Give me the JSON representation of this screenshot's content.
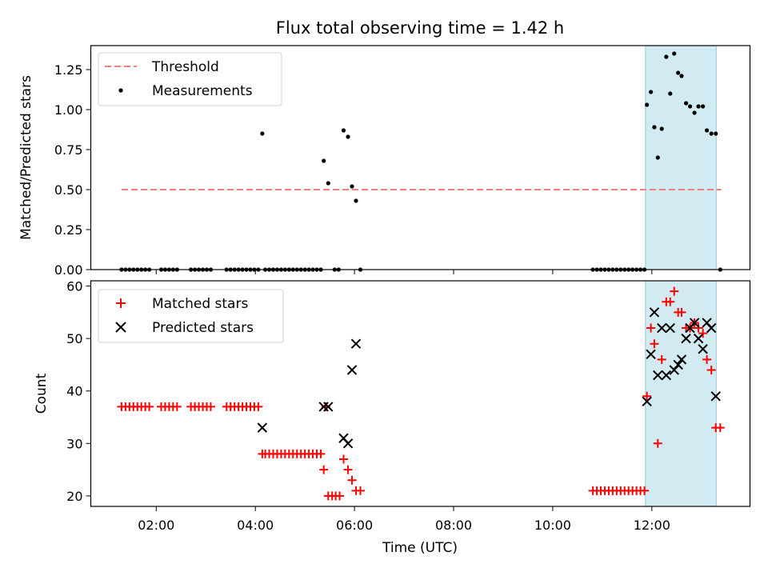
{
  "chart_data": [
    {
      "type": "scatter",
      "title": "Flux total observing time = 1.42 h",
      "xlabel": "",
      "ylabel": "Matched/Predicted stars",
      "xlim": [
        0.68,
        13.98
      ],
      "ylim": [
        0,
        1.4
      ],
      "yticks": [
        "0.00",
        "0.25",
        "0.50",
        "0.75",
        "1.00",
        "1.25"
      ],
      "xticks": [
        "02:00",
        "04:00",
        "06:00",
        "08:00",
        "10:00",
        "12:00"
      ],
      "shaded_span": [
        11.87,
        13.3
      ],
      "shade_color": "#add8e6",
      "legend": {
        "position": "top-left",
        "entries": [
          "Threshold",
          "Measurements"
        ]
      },
      "series": [
        {
          "name": "Threshold",
          "kind": "dashed-line",
          "color": "#f08080",
          "x": [
            1.3,
            13.4
          ],
          "y": [
            0.5,
            0.5
          ]
        },
        {
          "name": "Measurements",
          "kind": "dot",
          "color": "#000000",
          "points": [
            [
              1.3,
              0
            ],
            [
              1.38,
              0
            ],
            [
              1.46,
              0
            ],
            [
              1.54,
              0
            ],
            [
              1.62,
              0
            ],
            [
              1.7,
              0
            ],
            [
              1.78,
              0
            ],
            [
              1.86,
              0
            ],
            [
              2.1,
              0
            ],
            [
              2.18,
              0
            ],
            [
              2.26,
              0
            ],
            [
              2.34,
              0
            ],
            [
              2.42,
              0
            ],
            [
              2.7,
              0
            ],
            [
              2.78,
              0
            ],
            [
              2.86,
              0
            ],
            [
              2.94,
              0
            ],
            [
              3.02,
              0
            ],
            [
              3.1,
              0
            ],
            [
              3.42,
              0
            ],
            [
              3.5,
              0
            ],
            [
              3.58,
              0
            ],
            [
              3.66,
              0
            ],
            [
              3.74,
              0
            ],
            [
              3.82,
              0
            ],
            [
              3.9,
              0
            ],
            [
              3.98,
              0
            ],
            [
              4.06,
              0
            ],
            [
              4.14,
              0.85
            ],
            [
              4.2,
              0
            ],
            [
              4.28,
              0
            ],
            [
              4.36,
              0
            ],
            [
              4.44,
              0
            ],
            [
              4.52,
              0
            ],
            [
              4.6,
              0
            ],
            [
              4.68,
              0
            ],
            [
              4.76,
              0
            ],
            [
              4.84,
              0
            ],
            [
              4.92,
              0
            ],
            [
              5.0,
              0
            ],
            [
              5.08,
              0
            ],
            [
              5.16,
              0
            ],
            [
              5.24,
              0
            ],
            [
              5.32,
              0
            ],
            [
              5.38,
              0.68
            ],
            [
              5.47,
              0.54
            ],
            [
              5.6,
              0
            ],
            [
              5.68,
              0
            ],
            [
              5.78,
              0.87
            ],
            [
              5.87,
              0.83
            ],
            [
              5.95,
              0.52
            ],
            [
              6.03,
              0.43
            ],
            [
              6.12,
              0
            ],
            [
              10.81,
              0
            ],
            [
              10.89,
              0
            ],
            [
              10.97,
              0
            ],
            [
              11.05,
              0
            ],
            [
              11.13,
              0
            ],
            [
              11.21,
              0
            ],
            [
              11.29,
              0
            ],
            [
              11.37,
              0
            ],
            [
              11.45,
              0
            ],
            [
              11.53,
              0
            ],
            [
              11.61,
              0
            ],
            [
              11.69,
              0
            ],
            [
              11.77,
              0
            ],
            [
              11.85,
              0
            ],
            [
              11.9,
              1.03
            ],
            [
              11.98,
              1.11
            ],
            [
              12.05,
              0.89
            ],
            [
              12.12,
              0.7
            ],
            [
              12.2,
              0.88
            ],
            [
              12.29,
              1.33
            ],
            [
              12.37,
              1.1
            ],
            [
              12.45,
              1.35
            ],
            [
              12.53,
              1.23
            ],
            [
              12.6,
              1.21
            ],
            [
              12.69,
              1.04
            ],
            [
              12.77,
              1.02
            ],
            [
              12.86,
              0.98
            ],
            [
              12.94,
              1.02
            ],
            [
              13.03,
              1.02
            ],
            [
              13.11,
              0.87
            ],
            [
              13.2,
              0.85
            ],
            [
              13.29,
              0.85
            ],
            [
              13.38,
              0
            ]
          ]
        }
      ]
    },
    {
      "type": "scatter",
      "title": "",
      "xlabel": "Time (UTC)",
      "ylabel": "Count",
      "xlim": [
        0.68,
        13.98
      ],
      "ylim": [
        18,
        61
      ],
      "yticks": [
        "20",
        "30",
        "40",
        "50",
        "60"
      ],
      "xticks": [
        "02:00",
        "04:00",
        "06:00",
        "08:00",
        "10:00",
        "12:00"
      ],
      "shaded_span": [
        11.87,
        13.3
      ],
      "shade_color": "#add8e6",
      "legend": {
        "position": "top-left",
        "entries": [
          "Matched stars",
          "Predicted stars"
        ]
      },
      "series": [
        {
          "name": "Matched stars",
          "kind": "plus",
          "color": "#ff0000",
          "points": [
            [
              1.3,
              37
            ],
            [
              1.38,
              37
            ],
            [
              1.46,
              37
            ],
            [
              1.54,
              37
            ],
            [
              1.62,
              37
            ],
            [
              1.7,
              37
            ],
            [
              1.78,
              37
            ],
            [
              1.86,
              37
            ],
            [
              2.1,
              37
            ],
            [
              2.18,
              37
            ],
            [
              2.26,
              37
            ],
            [
              2.34,
              37
            ],
            [
              2.42,
              37
            ],
            [
              2.7,
              37
            ],
            [
              2.78,
              37
            ],
            [
              2.86,
              37
            ],
            [
              2.94,
              37
            ],
            [
              3.02,
              37
            ],
            [
              3.1,
              37
            ],
            [
              3.42,
              37
            ],
            [
              3.5,
              37
            ],
            [
              3.58,
              37
            ],
            [
              3.66,
              37
            ],
            [
              3.74,
              37
            ],
            [
              3.82,
              37
            ],
            [
              3.9,
              37
            ],
            [
              3.98,
              37
            ],
            [
              4.06,
              37
            ],
            [
              4.14,
              28
            ],
            [
              4.2,
              28
            ],
            [
              4.28,
              28
            ],
            [
              4.36,
              28
            ],
            [
              4.44,
              28
            ],
            [
              4.52,
              28
            ],
            [
              4.6,
              28
            ],
            [
              4.68,
              28
            ],
            [
              4.76,
              28
            ],
            [
              4.84,
              28
            ],
            [
              4.92,
              28
            ],
            [
              5.0,
              28
            ],
            [
              5.08,
              28
            ],
            [
              5.16,
              28
            ],
            [
              5.24,
              28
            ],
            [
              5.32,
              28
            ],
            [
              5.38,
              25
            ],
            [
              5.42,
              37
            ],
            [
              5.47,
              20
            ],
            [
              5.55,
              20
            ],
            [
              5.62,
              20
            ],
            [
              5.7,
              20
            ],
            [
              5.78,
              27
            ],
            [
              5.87,
              25
            ],
            [
              5.95,
              23
            ],
            [
              6.03,
              21
            ],
            [
              6.12,
              21
            ],
            [
              10.81,
              21
            ],
            [
              10.89,
              21
            ],
            [
              10.97,
              21
            ],
            [
              11.05,
              21
            ],
            [
              11.13,
              21
            ],
            [
              11.21,
              21
            ],
            [
              11.29,
              21
            ],
            [
              11.37,
              21
            ],
            [
              11.45,
              21
            ],
            [
              11.53,
              21
            ],
            [
              11.61,
              21
            ],
            [
              11.69,
              21
            ],
            [
              11.77,
              21
            ],
            [
              11.85,
              21
            ],
            [
              11.9,
              39
            ],
            [
              11.98,
              52
            ],
            [
              12.05,
              49
            ],
            [
              12.12,
              30
            ],
            [
              12.2,
              46
            ],
            [
              12.29,
              57
            ],
            [
              12.37,
              57
            ],
            [
              12.45,
              59
            ],
            [
              12.53,
              55
            ],
            [
              12.6,
              55
            ],
            [
              12.69,
              52
            ],
            [
              12.77,
              52
            ],
            [
              12.86,
              53
            ],
            [
              12.94,
              52
            ],
            [
              13.03,
              51
            ],
            [
              13.11,
              46
            ],
            [
              13.2,
              44
            ],
            [
              13.29,
              33
            ],
            [
              13.38,
              33
            ]
          ]
        },
        {
          "name": "Predicted stars",
          "kind": "x",
          "color": "#000000",
          "points": [
            [
              4.14,
              33
            ],
            [
              5.38,
              37
            ],
            [
              5.47,
              37
            ],
            [
              5.78,
              31
            ],
            [
              5.87,
              30
            ],
            [
              5.95,
              44
            ],
            [
              6.03,
              49
            ],
            [
              11.9,
              38
            ],
            [
              11.98,
              47
            ],
            [
              12.05,
              55
            ],
            [
              12.12,
              43
            ],
            [
              12.2,
              52
            ],
            [
              12.29,
              43
            ],
            [
              12.37,
              52
            ],
            [
              12.45,
              44
            ],
            [
              12.53,
              45
            ],
            [
              12.6,
              46
            ],
            [
              12.69,
              50
            ],
            [
              12.77,
              52
            ],
            [
              12.86,
              53
            ],
            [
              12.94,
              50
            ],
            [
              13.03,
              48
            ],
            [
              13.11,
              53
            ],
            [
              13.2,
              52
            ],
            [
              13.29,
              39
            ]
          ]
        }
      ]
    }
  ]
}
